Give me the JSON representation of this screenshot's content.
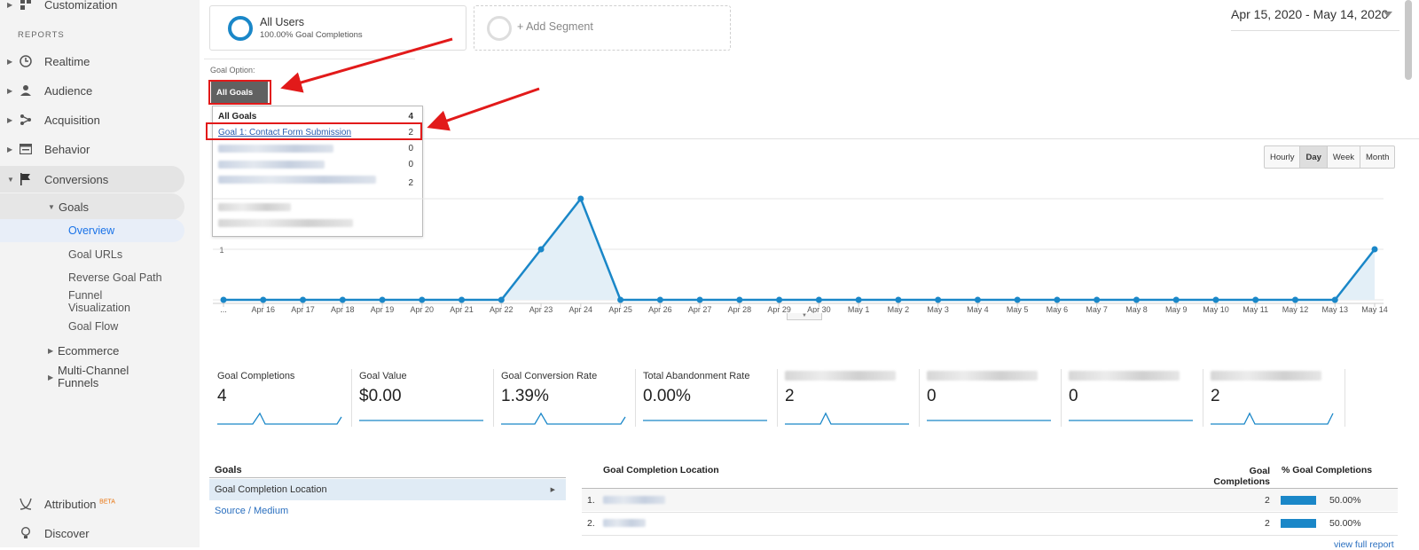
{
  "sidebar": {
    "customization": "Customization",
    "reports_label": "REPORTS",
    "items": [
      {
        "label": "Realtime"
      },
      {
        "label": "Audience"
      },
      {
        "label": "Acquisition"
      },
      {
        "label": "Behavior"
      },
      {
        "label": "Conversions"
      }
    ],
    "goals": "Goals",
    "goal_items": [
      {
        "label": "Overview"
      },
      {
        "label": "Goal URLs"
      },
      {
        "label": "Reverse Goal Path"
      },
      {
        "label": "Funnel Visualization"
      },
      {
        "label": "Goal Flow"
      }
    ],
    "ecommerce": "Ecommerce",
    "multichannel": "Multi-Channel Funnels",
    "attribution": "Attribution",
    "beta": "BETA",
    "discover": "Discover"
  },
  "segments": {
    "all_users_title": "All Users",
    "all_users_sub": "100.00% Goal Completions",
    "add_segment": "+ Add Segment"
  },
  "date_range": "Apr 15, 2020 - May 14, 2020",
  "goal_option": {
    "label": "Goal Option:",
    "button": "All Goals",
    "dropdown": [
      {
        "label": "All Goals",
        "count": "4"
      },
      {
        "label": "Goal 1: Contact Form Submission",
        "count": "2"
      },
      {
        "label": "",
        "count": "0"
      },
      {
        "label": "",
        "count": "0"
      },
      {
        "label": "",
        "count": "2"
      },
      {
        "label": "",
        "count": ""
      },
      {
        "label": "",
        "count": ""
      }
    ]
  },
  "range_buttons": [
    "Hourly",
    "Day",
    "Week",
    "Month"
  ],
  "colors": {
    "accent": "#1a87c8",
    "annotation": "#e21a1a"
  },
  "chart_data": {
    "type": "area",
    "x": [
      "...",
      "Apr 16",
      "Apr 17",
      "Apr 18",
      "Apr 19",
      "Apr 20",
      "Apr 21",
      "Apr 22",
      "Apr 23",
      "Apr 24",
      "Apr 25",
      "Apr 26",
      "Apr 27",
      "Apr 28",
      "Apr 29",
      "Apr 30",
      "May 1",
      "May 2",
      "May 3",
      "May 4",
      "May 5",
      "May 6",
      "May 7",
      "May 8",
      "May 9",
      "May 10",
      "May 11",
      "May 12",
      "May 13",
      "May 14"
    ],
    "values": [
      0,
      0,
      0,
      0,
      0,
      0,
      0,
      0,
      1,
      2,
      0,
      0,
      0,
      0,
      0,
      0,
      0,
      0,
      0,
      0,
      0,
      0,
      0,
      0,
      0,
      0,
      0,
      0,
      0,
      1
    ],
    "ytick_labels": [
      "1"
    ],
    "ylim": [
      0,
      2
    ],
    "grid": true
  },
  "metrics": [
    {
      "label": "Goal Completions",
      "value": "4"
    },
    {
      "label": "Goal Value",
      "value": "$0.00"
    },
    {
      "label": "Goal Conversion Rate",
      "value": "1.39%"
    },
    {
      "label": "Total Abandonment Rate",
      "value": "0.00%"
    },
    {
      "label": "",
      "value": "2"
    },
    {
      "label": "",
      "value": "0"
    },
    {
      "label": "",
      "value": "0"
    },
    {
      "label": "",
      "value": "2"
    }
  ],
  "goals_nav": {
    "title": "Goals",
    "selected": "Goal Completion Location",
    "other": "Source / Medium"
  },
  "table": {
    "col_location": "Goal Completion Location",
    "col_completions": "Goal Completions",
    "col_pct": "% Goal Completions",
    "rows": [
      {
        "num": "1.",
        "completions": "2",
        "pct": "50.00%",
        "pct_value": 0.5
      },
      {
        "num": "2.",
        "completions": "2",
        "pct": "50.00%",
        "pct_value": 0.5
      }
    ],
    "view_full_report": "view full report"
  }
}
